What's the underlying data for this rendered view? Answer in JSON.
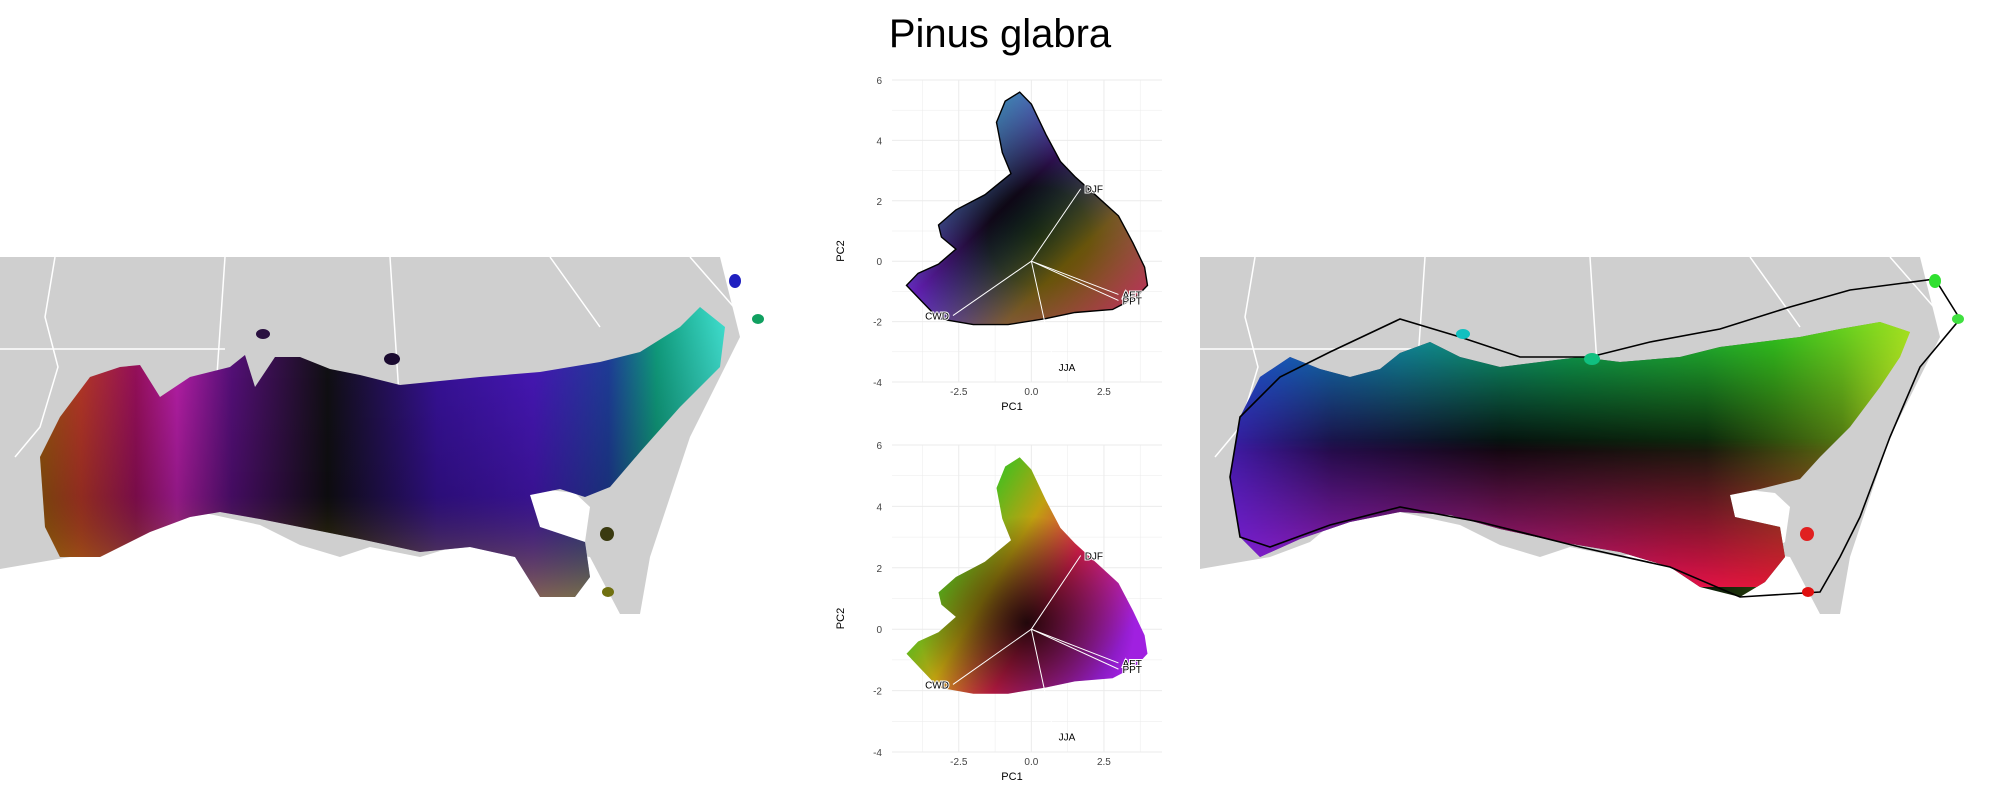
{
  "title": "Pinus glabra",
  "colors": {
    "land": "#cfcfcf",
    "border": "#ffffff",
    "grid": "#ebebeb",
    "hull": "#000000"
  },
  "chart_data": [
    {
      "type": "scatter",
      "panel": "pca-top",
      "xlabel": "PC1",
      "ylabel": "PC2",
      "xlim": [
        -4.8,
        4.5
      ],
      "ylim": [
        -4,
        6
      ],
      "x_ticks": [
        "-2.5",
        "0.0",
        "2.5"
      ],
      "y_ticks": [
        "-4",
        "-2",
        "0",
        "2",
        "4",
        "6"
      ],
      "grid": true,
      "loadings": [
        {
          "label": "DJF",
          "x": 1.7,
          "y": 2.4
        },
        {
          "label": "AET",
          "x": 3.0,
          "y": -1.1
        },
        {
          "label": "PPT",
          "x": 3.0,
          "y": -1.3
        },
        {
          "label": "CWD",
          "x": -2.7,
          "y": -1.8
        },
        {
          "label": "JJA",
          "x": 0.8,
          "y": -3.5
        }
      ]
    },
    {
      "type": "scatter",
      "panel": "pca-bottom",
      "xlabel": "PC1",
      "ylabel": "PC2",
      "xlim": [
        -4.8,
        4.5
      ],
      "ylim": [
        -4,
        6
      ],
      "x_ticks": [
        "-2.5",
        "0.0",
        "2.5"
      ],
      "y_ticks": [
        "-4",
        "-2",
        "0",
        "2",
        "4",
        "6"
      ],
      "grid": true,
      "loadings": [
        {
          "label": "DJF",
          "x": 1.7,
          "y": 2.4
        },
        {
          "label": "AET",
          "x": 3.0,
          "y": -1.1
        },
        {
          "label": "PPT",
          "x": 3.0,
          "y": -1.3
        },
        {
          "label": "CWD",
          "x": -2.7,
          "y": -1.8
        },
        {
          "label": "JJA",
          "x": 0.8,
          "y": -3.5
        }
      ]
    }
  ]
}
